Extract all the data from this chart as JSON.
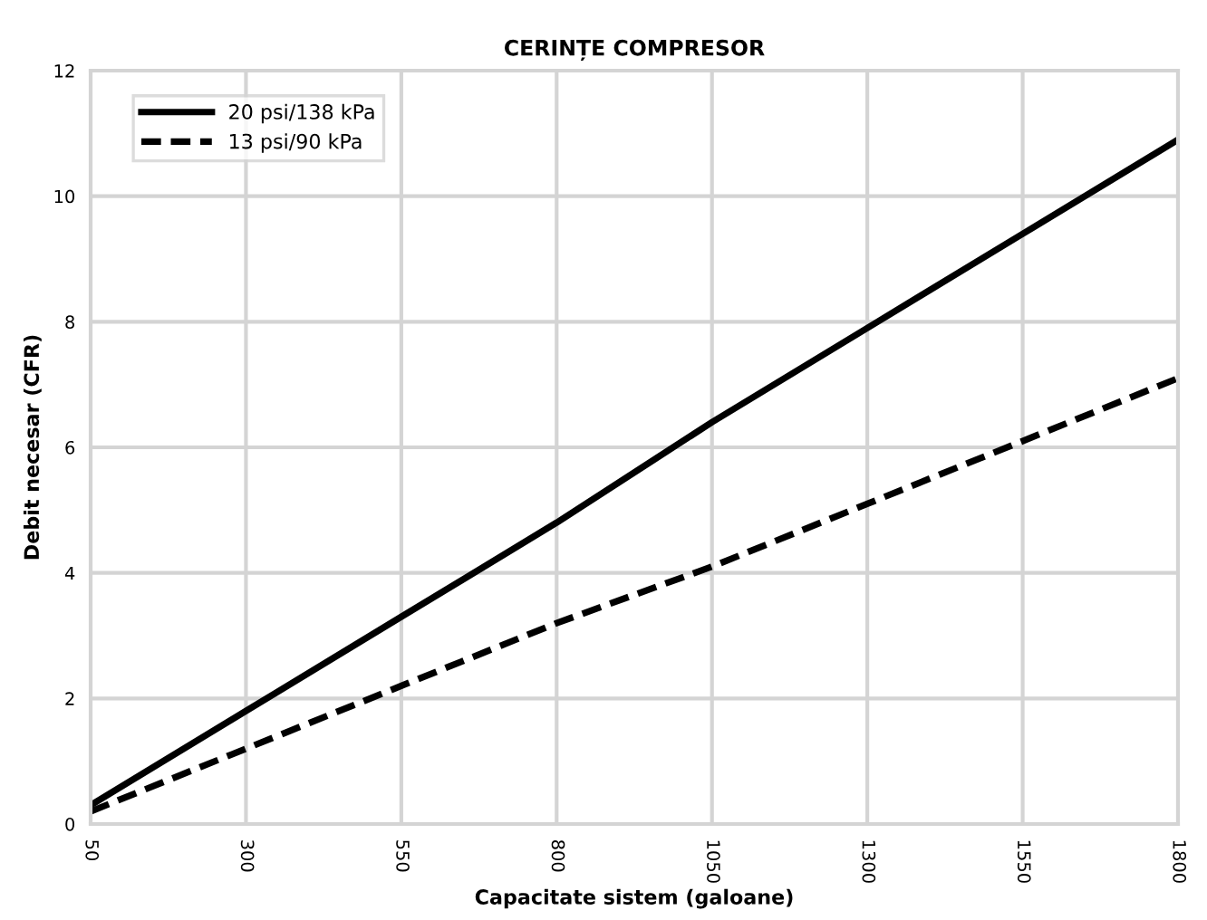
{
  "chart_data": {
    "type": "line",
    "title": "CERINȚE COMPRESOR",
    "xlabel": "Capacitate sistem (galoane)",
    "ylabel": "Debit necesar (CFR)",
    "x": [
      50,
      300,
      550,
      800,
      1050,
      1300,
      1550,
      1800
    ],
    "series": [
      {
        "name": "20 psi/138 kPa",
        "color": "#000000",
        "line_style": "solid",
        "values": [
          0.3,
          1.8,
          3.3,
          4.8,
          6.4,
          7.9,
          9.4,
          10.9
        ]
      },
      {
        "name": "13 psi/90 kPa",
        "color": "#000000",
        "line_style": "dashed",
        "values": [
          0.2,
          1.2,
          2.2,
          3.2,
          4.1,
          5.1,
          6.1,
          7.1
        ]
      }
    ],
    "xlim": [
      50,
      1800
    ],
    "xticks": [
      50,
      300,
      550,
      800,
      1050,
      1300,
      1550,
      1800
    ],
    "ylim": [
      0,
      12
    ],
    "yticks": [
      0,
      2,
      4,
      6,
      8,
      10,
      12
    ],
    "grid": true,
    "legend": "top left",
    "marker": "none"
  }
}
